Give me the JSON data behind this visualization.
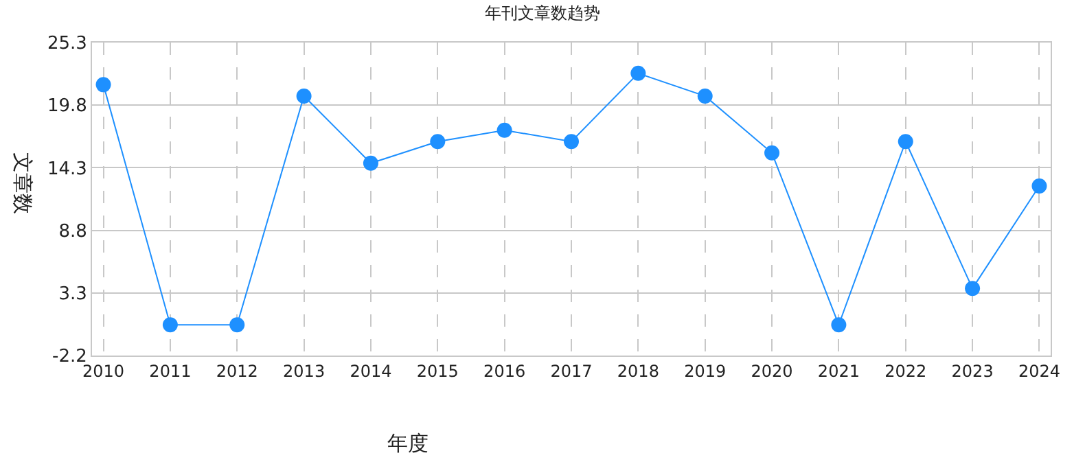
{
  "chart_data": {
    "type": "line",
    "title": "年刊文章数趋势",
    "xlabel": "年度",
    "ylabel": "文章数",
    "categories": [
      "2010",
      "2011",
      "2012",
      "2013",
      "2014",
      "2015",
      "2016",
      "2017",
      "2018",
      "2019",
      "2020",
      "2021",
      "2022",
      "2023",
      "2024"
    ],
    "series": [
      {
        "color": "#1e90ff",
        "values": [
          21.6,
          0.5,
          0.5,
          20.6,
          14.7,
          16.6,
          17.6,
          16.6,
          22.6,
          20.6,
          15.6,
          0.5,
          16.6,
          3.7,
          12.7
        ]
      }
    ],
    "ylim": [
      -2.2,
      25.3
    ],
    "yticks": [
      -2.2,
      3.3,
      8.8,
      14.3,
      19.8,
      25.3
    ],
    "grid": true,
    "marker": "circle",
    "line_style": "solid",
    "legend": false
  }
}
